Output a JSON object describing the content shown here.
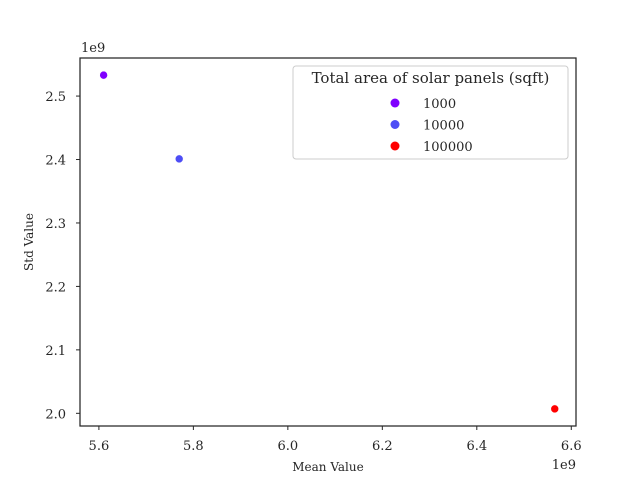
{
  "chart_data": {
    "type": "scatter",
    "xlabel": "Mean Value",
    "ylabel": "Std Value",
    "x_offset_label": "1e9",
    "y_offset_label": "1e9",
    "xlim": [
      5560000000.0,
      6610000000.0
    ],
    "ylim": [
      1980000000.0,
      2560000000.0
    ],
    "xticks": [
      5600000000.0,
      5800000000.0,
      6000000000.0,
      6200000000.0,
      6400000000.0,
      6600000000.0
    ],
    "xtick_labels": [
      "5.6",
      "5.8",
      "6.0",
      "6.2",
      "6.4",
      "6.6"
    ],
    "yticks": [
      2000000000.0,
      2100000000.0,
      2200000000.0,
      2300000000.0,
      2400000000.0,
      2500000000.0
    ],
    "ytick_labels": [
      "2.0",
      "2.1",
      "2.2",
      "2.3",
      "2.4",
      "2.5"
    ],
    "grid": false,
    "legend": {
      "title": "Total area of solar panels (sqft)",
      "placement": "top-right"
    },
    "series": [
      {
        "name": "1000",
        "color": "#8000ff",
        "x": [
          5610000000.0
        ],
        "y": [
          2533000000.0
        ]
      },
      {
        "name": "10000",
        "color": "#4d4df5",
        "x": [
          5770000000.0
        ],
        "y": [
          2401000000.0
        ]
      },
      {
        "name": "100000",
        "color": "#ff0000",
        "x": [
          6565000000.0
        ],
        "y": [
          2007000000.0
        ]
      }
    ]
  }
}
